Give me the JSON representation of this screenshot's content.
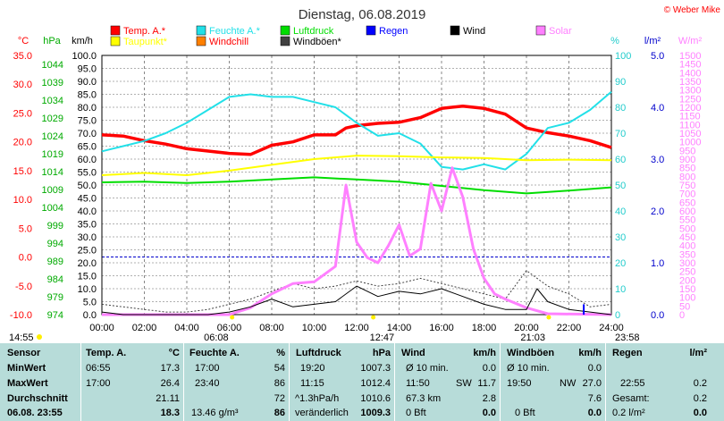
{
  "header": {
    "title": "Dienstag, 06.08.2019",
    "copyright": "© Weber Mike"
  },
  "legend": [
    {
      "label": "Temp. A.*",
      "color": "#ff0000"
    },
    {
      "label": "Feuchte A.*",
      "color": "#22e0e8"
    },
    {
      "label": "Luftdruck",
      "color": "#00dd00"
    },
    {
      "label": "Regen",
      "color": "#0000ff"
    },
    {
      "label": "Wind",
      "color": "#000000"
    },
    {
      "label": "Solar",
      "color": "#ff80ff"
    },
    {
      "label": "Taupunkt*",
      "color": "#ffff00"
    },
    {
      "label": "Windchill",
      "color": "#ff8000"
    },
    {
      "label": "Windböen*",
      "color": "#404040"
    }
  ],
  "chart_data": {
    "type": "line",
    "x_ticks": [
      "00:00",
      "02:00",
      "04:00",
      "06:00",
      "08:00",
      "10:00",
      "12:00",
      "14:00",
      "16:00",
      "18:00",
      "20:00",
      "22:00",
      "24:00"
    ],
    "axes": {
      "temp": {
        "unit": "°C",
        "ticks": [
          "-10.0",
          "-5.0",
          "0.0",
          "5.0",
          "10.0",
          "15.0",
          "20.0",
          "25.0",
          "30.0",
          "35.0"
        ],
        "range": [
          -10,
          35
        ],
        "color": "#ff0000"
      },
      "pressure": {
        "unit": "hPa",
        "ticks": [
          "974",
          "979",
          "984",
          "989",
          "994",
          "999",
          "1004",
          "1009",
          "1014",
          "1019",
          "1024",
          "1029",
          "1034",
          "1039",
          "1044"
        ],
        "range": [
          974,
          1046.5
        ],
        "color": "#00aa00"
      },
      "wind": {
        "unit": "km/h",
        "ticks": [
          "0.0",
          "5.0",
          "10.0",
          "15.0",
          "20.0",
          "25.0",
          "30.0",
          "35.0",
          "40.0",
          "45.0",
          "50.0",
          "55.0",
          "60.0",
          "65.0",
          "70.0",
          "75.0",
          "80.0",
          "85.0",
          "90.0",
          "95.0",
          "100.0"
        ],
        "range": [
          0,
          100
        ],
        "color": "#000000"
      },
      "humidity": {
        "unit": "%",
        "ticks": [
          "0",
          "10",
          "20",
          "30",
          "40",
          "50",
          "60",
          "70",
          "80",
          "90",
          "100"
        ],
        "range": [
          0,
          100
        ],
        "color": "#22cccc"
      },
      "rain": {
        "unit": "l/m²",
        "ticks": [
          "0.0",
          "1.0",
          "2.0",
          "3.0",
          "4.0",
          "5.0"
        ],
        "range": [
          0,
          5
        ],
        "color": "#0000cc"
      },
      "solar": {
        "unit": "W/m²",
        "ticks": [
          "0",
          "50",
          "100",
          "150",
          "200",
          "250",
          "300",
          "350",
          "400",
          "450",
          "500",
          "550",
          "600",
          "650",
          "700",
          "750",
          "800",
          "850",
          "900",
          "950",
          "1000",
          "1050",
          "1100",
          "1150",
          "1200",
          "1250",
          "1300",
          "1350",
          "1400",
          "1450",
          "1500"
        ],
        "range": [
          0,
          1500
        ],
        "color": "#ff80ff"
      }
    },
    "series": [
      {
        "name": "Temp. A.*",
        "axis": "temp",
        "color": "#ff0000",
        "width": 3.5,
        "x": [
          0,
          1,
          2,
          3,
          4,
          5,
          6,
          7,
          8,
          9,
          10,
          11,
          11.5,
          12,
          13,
          14,
          15,
          16,
          17,
          18,
          19,
          20,
          21,
          22,
          23,
          24
        ],
        "y": [
          21.2,
          21.0,
          20.2,
          19.6,
          18.8,
          18.4,
          18.0,
          17.8,
          19.4,
          20.0,
          21.2,
          21.2,
          22.4,
          22.8,
          23.2,
          23.4,
          24.2,
          25.8,
          26.2,
          25.8,
          24.8,
          22.4,
          21.6,
          21.0,
          20.2,
          19.0
        ]
      },
      {
        "name": "Feuchte A.*",
        "axis": "humidity",
        "color": "#22e0e8",
        "width": 2,
        "x": [
          0,
          1,
          2,
          3,
          4,
          5,
          6,
          7,
          8,
          9,
          10,
          11,
          12,
          13,
          14,
          15,
          16,
          17,
          18,
          19,
          20,
          21,
          22,
          23,
          24
        ],
        "y": [
          63,
          65,
          67,
          70,
          74,
          79,
          84,
          85,
          84,
          84,
          82,
          80,
          74,
          69,
          70,
          66,
          57,
          56,
          58,
          56,
          62,
          72,
          74,
          79,
          86
        ]
      },
      {
        "name": "Taupunkt*",
        "axis": "temp",
        "color": "#ffff00",
        "width": 2,
        "x": [
          0,
          2,
          4,
          6,
          8,
          10,
          12,
          14,
          16,
          18,
          20,
          22,
          24
        ],
        "y": [
          14.2,
          14.6,
          14.2,
          15.0,
          16.0,
          17.0,
          17.6,
          17.5,
          17.3,
          17.2,
          16.8,
          16.9,
          16.8
        ]
      },
      {
        "name": "Luftdruck",
        "axis": "pressure",
        "color": "#00dd00",
        "width": 2,
        "x": [
          0,
          2,
          4,
          6,
          8,
          10,
          12,
          14,
          16,
          18,
          20,
          22,
          24
        ],
        "y": [
          1011.0,
          1011.2,
          1010.8,
          1011.2,
          1011.8,
          1012.4,
          1011.8,
          1011.2,
          1010.0,
          1008.8,
          1007.9,
          1008.7,
          1009.6
        ]
      },
      {
        "name": "Windböen*",
        "axis": "wind",
        "color": "#404040",
        "width": 1,
        "x": [
          0,
          1,
          2,
          3,
          4,
          5,
          6,
          7,
          8,
          9,
          10,
          11,
          12,
          13,
          14,
          15,
          16,
          17,
          18,
          19,
          20,
          21,
          22,
          23,
          24
        ],
        "y": [
          4,
          3,
          2,
          1,
          1,
          2,
          4,
          6,
          9,
          12,
          10,
          11,
          13,
          11,
          12,
          14,
          12,
          10,
          8,
          6,
          17,
          11,
          8,
          3,
          4
        ]
      },
      {
        "name": "Solar",
        "axis": "solar",
        "color": "#ff80ff",
        "width": 3,
        "x": [
          0,
          6,
          7,
          8,
          9,
          10,
          11,
          11.5,
          12,
          12.5,
          13,
          13.5,
          14,
          14.5,
          15,
          15.5,
          16,
          16.5,
          17,
          17.5,
          18,
          18.5,
          19,
          20,
          21,
          24
        ],
        "y": [
          0,
          0,
          40,
          120,
          180,
          190,
          280,
          750,
          420,
          330,
          300,
          400,
          520,
          340,
          380,
          760,
          600,
          850,
          680,
          380,
          210,
          120,
          90,
          40,
          5,
          0
        ]
      },
      {
        "name": "Wind",
        "axis": "wind",
        "color": "#000000",
        "width": 1,
        "x": [
          0,
          1,
          2,
          3,
          4,
          5,
          6,
          7,
          8,
          9,
          10,
          11,
          12,
          13,
          14,
          15,
          16,
          17,
          18,
          19,
          20,
          20.5,
          21,
          22,
          23,
          24
        ],
        "y": [
          1,
          0,
          0,
          0,
          0,
          0,
          1,
          3,
          6,
          3,
          4,
          5,
          11,
          7,
          9,
          8,
          10,
          7,
          4,
          2,
          2,
          10,
          5,
          2,
          1,
          0
        ]
      },
      {
        "name": "Regen",
        "axis": "rain",
        "color": "#0000ff",
        "width": 2,
        "x": [
          22.7,
          22.7
        ],
        "y": [
          0,
          0.2
        ]
      }
    ]
  },
  "markers": {
    "sunrise": "06:08",
    "noon": "12:47",
    "sunset": "21:03",
    "left_time": "14:55",
    "right_time": "23:58"
  },
  "table": {
    "rows": [
      "Sensor",
      "MinWert",
      "MaxWert",
      "Durchschnitt",
      "06.08.  23:55"
    ],
    "temp": {
      "header": "Temp. A.",
      "unit": "°C",
      "min_time": "06:55",
      "min": "17.3",
      "max_time": "17:00",
      "max": "26.4",
      "avg": "21.11",
      "current": "18.3"
    },
    "humidity": {
      "header": "Feuchte A.",
      "unit": "%",
      "min_time": "17:00",
      "min": "54",
      "max_time": "23:40",
      "max": "86",
      "avg": "72",
      "abs": "13.46 g/m³",
      "current": "86"
    },
    "pressure": {
      "header": "Luftdruck",
      "unit": "hPa",
      "min_time": "19:20",
      "min": "1007.3",
      "max_time": "11:15",
      "max": "1012.4",
      "avg_label": "^1.3hPa/h",
      "avg": "1010.6",
      "trend": "veränderlich",
      "current": "1009.3"
    },
    "wind": {
      "header": "Wind",
      "unit": "km/h",
      "min_label": "Ø 10 min.",
      "min": "0.0",
      "max_time": "11:50",
      "max_dir": "SW",
      "max": "11.7",
      "dist": "67.3 km",
      "avg": "2.8",
      "bft": "0 Bft",
      "current": "0.0"
    },
    "gust": {
      "header": "Windböen",
      "unit": "km/h",
      "min_label": "Ø 10 min.",
      "min": "0.0",
      "max_time": "19:50",
      "max_dir": "NW",
      "max": "27.0",
      "avg": "7.6",
      "bft": "0 Bft",
      "current": "0.0"
    },
    "rain": {
      "header": "Regen",
      "unit": "l/m²",
      "max_time": "22:55",
      "max": "0.2",
      "total_label": "Gesamt:",
      "total": "0.2",
      "current_rate": "0.2 l/m²",
      "current": "0.0"
    }
  }
}
